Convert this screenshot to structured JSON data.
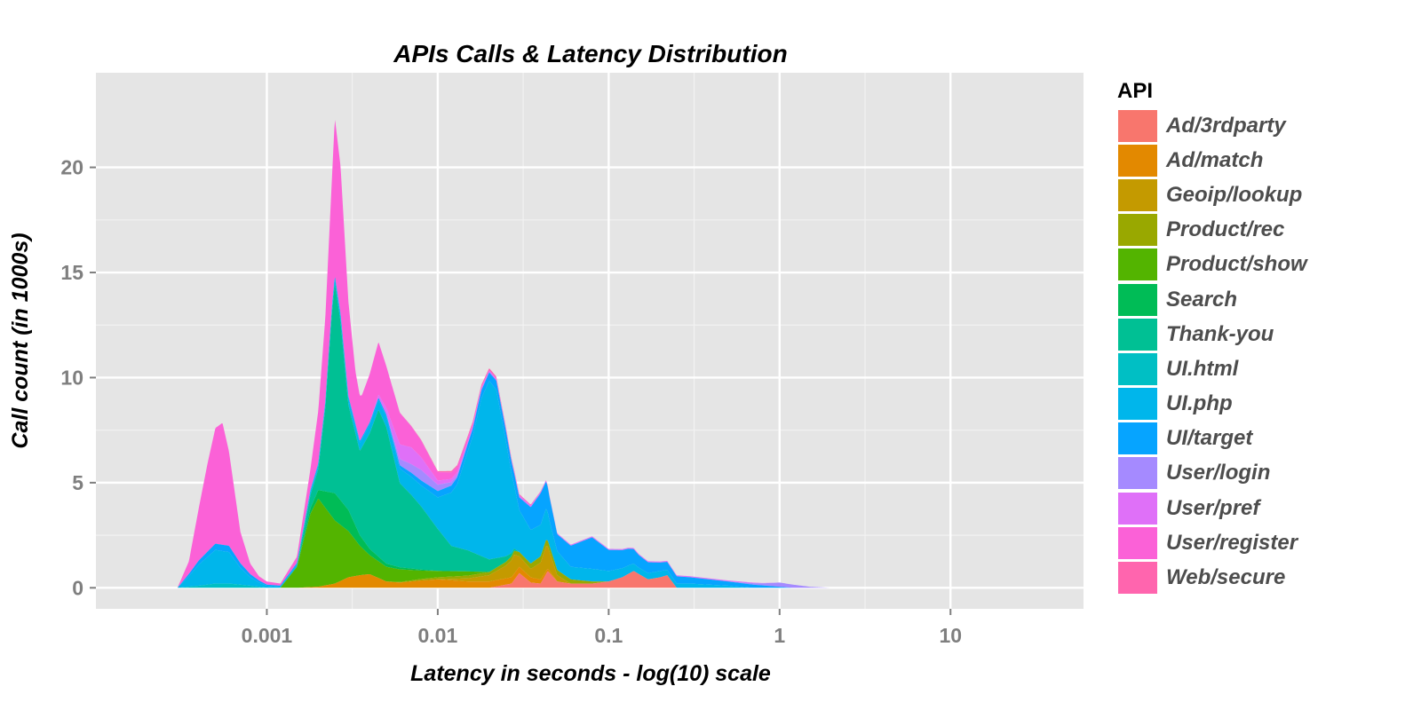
{
  "chart_data": {
    "type": "area",
    "title": "APIs Calls & Latency Distribution",
    "xlabel": "Latency in seconds - log(10) scale",
    "ylabel": "Call count (in 1000s)",
    "x_scale": "log10",
    "xlim": [
      0.0001,
      60
    ],
    "ylim": [
      -1,
      24.5
    ],
    "x_ticks": [
      0.001,
      0.01,
      0.1,
      1,
      10
    ],
    "x_tick_labels": [
      "0.001",
      "0.01",
      "0.1",
      "1",
      "10"
    ],
    "y_ticks": [
      0,
      5,
      10,
      15,
      20
    ],
    "y_tick_labels": [
      "0",
      "5",
      "10",
      "15",
      "20"
    ],
    "grid": true,
    "legend_position": "right",
    "legend_title": "API",
    "series": [
      {
        "name": "Ad/3rdparty",
        "color": "#F8766D",
        "x": [
          0.02,
          0.027,
          0.03,
          0.035,
          0.04,
          0.044,
          0.05,
          0.06,
          0.08,
          0.1,
          0.12,
          0.14,
          0.17,
          0.2,
          0.22,
          0.25
        ],
        "values": [
          0,
          0.2,
          0.7,
          0.25,
          0.2,
          0.8,
          0.3,
          0.2,
          0.2,
          0.3,
          0.5,
          0.8,
          0.4,
          0.5,
          0.6,
          0
        ]
      },
      {
        "name": "Ad/match",
        "color": "#E38900",
        "x": [
          0.0015,
          0.002,
          0.0025,
          0.003,
          0.0035,
          0.004,
          0.005,
          0.006,
          0.008,
          0.01,
          0.015,
          0.02,
          0.03,
          0.04,
          0.05
        ],
        "values": [
          0,
          0.05,
          0.2,
          0.5,
          0.6,
          0.65,
          0.3,
          0.25,
          0.35,
          0.4,
          0.3,
          0.3,
          0.3,
          0.2,
          0
        ]
      },
      {
        "name": "Geoip/lookup",
        "color": "#C49A00",
        "x": [
          0.01,
          0.015,
          0.02,
          0.025,
          0.028,
          0.03,
          0.035,
          0.04,
          0.043,
          0.05,
          0.06
        ],
        "values": [
          0,
          0.15,
          0.3,
          0.6,
          0.9,
          0.5,
          0.4,
          0.8,
          1.2,
          0.3,
          0
        ]
      },
      {
        "name": "Product/rec",
        "color": "#99A800",
        "x": [
          0.005,
          0.01,
          0.02,
          0.03,
          0.04,
          0.06,
          0.08,
          0.1
        ],
        "values": [
          0,
          0.1,
          0.15,
          0.2,
          0.3,
          0.2,
          0.1,
          0
        ]
      },
      {
        "name": "Product/show",
        "color": "#53B400",
        "x": [
          0.0012,
          0.0015,
          0.0018,
          0.002,
          0.0025,
          0.003,
          0.0035,
          0.004,
          0.005,
          0.006,
          0.008,
          0.01,
          0.015,
          0.02
        ],
        "values": [
          0,
          1.0,
          3.5,
          4.2,
          3.0,
          2.2,
          1.4,
          0.9,
          0.7,
          0.6,
          0.4,
          0.3,
          0.2,
          0
        ]
      },
      {
        "name": "Search",
        "color": "#00BC56",
        "x": [
          0.0015,
          0.002,
          0.0025,
          0.003,
          0.0035,
          0.004,
          0.005,
          0.006,
          0.008,
          0.01
        ],
        "values": [
          0,
          0.4,
          1.3,
          1.0,
          0.5,
          0.3,
          0.15,
          0.1,
          0.05,
          0
        ]
      },
      {
        "name": "Thank-you",
        "color": "#00C094",
        "x": [
          0.0015,
          0.002,
          0.0022,
          0.0024,
          0.0025,
          0.0027,
          0.003,
          0.0035,
          0.004,
          0.0045,
          0.005,
          0.006,
          0.007,
          0.008,
          0.01,
          0.012,
          0.015,
          0.02,
          0.03
        ],
        "values": [
          0,
          1.0,
          4.0,
          8.5,
          10.0,
          8.5,
          5.0,
          4.0,
          5.5,
          7.0,
          6.5,
          4.0,
          3.5,
          3.0,
          2.0,
          1.2,
          1.0,
          0.6,
          0
        ]
      },
      {
        "name": "UI.html",
        "color": "#00BFC4",
        "x": [
          0.0003,
          0.0004,
          0.0005,
          0.0006,
          0.0007,
          0.0008,
          0.0009,
          0.001
        ],
        "values": [
          0,
          0.1,
          0.2,
          0.2,
          0.15,
          0.1,
          0.05,
          0
        ]
      },
      {
        "name": "UI.php",
        "color": "#00B6EB",
        "x": [
          0.0003,
          0.00035,
          0.0004,
          0.0005,
          0.0006,
          0.0007,
          0.0008,
          0.0009,
          0.001,
          0.0012,
          0.002,
          0.005,
          0.008,
          0.01,
          0.013,
          0.016,
          0.018,
          0.02,
          0.022,
          0.025,
          0.028,
          0.03,
          0.035,
          0.04,
          0.043,
          0.045,
          0.05,
          0.06,
          0.08,
          0.1,
          0.13,
          0.15,
          0.2,
          0.25,
          0.3,
          0.5,
          0.7
        ],
        "values": [
          0,
          0.5,
          1.0,
          1.6,
          1.5,
          0.8,
          0.4,
          0.2,
          0.1,
          0.05,
          0.2,
          0.5,
          1.0,
          1.5,
          3.0,
          5.5,
          7.5,
          8.5,
          8.0,
          5.5,
          3.0,
          2.0,
          1.6,
          1.5,
          1.5,
          1.2,
          0.9,
          0.6,
          0.6,
          0.5,
          0.4,
          0.3,
          0.3,
          0.2,
          0.2,
          0.1,
          0
        ]
      },
      {
        "name": "UI/target",
        "color": "#06A4FF",
        "x": [
          0.0003,
          0.0004,
          0.0005,
          0.0006,
          0.0008,
          0.001,
          0.005,
          0.01,
          0.02,
          0.03,
          0.04,
          0.05,
          0.06,
          0.08,
          0.1,
          0.13,
          0.15,
          0.2,
          0.3,
          0.5,
          0.7,
          1.0,
          1.2
        ],
        "values": [
          0,
          0.2,
          0.3,
          0.3,
          0.15,
          0.05,
          0.1,
          0.3,
          0.4,
          0.6,
          1.5,
          0.8,
          1.0,
          1.5,
          1.0,
          0.8,
          0.6,
          0.4,
          0.3,
          0.2,
          0.15,
          0.05,
          0
        ]
      },
      {
        "name": "User/login",
        "color": "#A58AFF",
        "x": [
          0.005,
          0.006,
          0.008,
          0.01,
          0.015,
          0.5,
          0.8,
          1.0,
          1.2,
          1.5,
          2.0
        ],
        "values": [
          0,
          0.3,
          0.5,
          0.3,
          0,
          0,
          0.1,
          0.2,
          0.15,
          0.05,
          0
        ]
      },
      {
        "name": "User/pref",
        "color": "#DF70F8",
        "x": [
          0.004,
          0.005,
          0.006,
          0.007,
          0.008,
          0.01,
          0.015,
          0.02,
          0.03,
          0.05,
          0.1,
          0.3,
          0.5,
          1.0
        ],
        "values": [
          0,
          0.3,
          0.7,
          0.8,
          0.6,
          0.2,
          0.1,
          0.1,
          0.1,
          0.05,
          0.05,
          0.05,
          0.05,
          0
        ]
      },
      {
        "name": "User/register",
        "color": "#FB61D7",
        "x": [
          0.0003,
          0.00035,
          0.0004,
          0.00045,
          0.0005,
          0.00055,
          0.0006,
          0.0007,
          0.0008,
          0.0009,
          0.001,
          0.0012,
          0.0015,
          0.0018,
          0.002,
          0.0022,
          0.0024,
          0.0025,
          0.0027,
          0.003,
          0.0033,
          0.0036,
          0.004,
          0.0045,
          0.005,
          0.006,
          0.007,
          0.008,
          0.01,
          0.015,
          0.02
        ],
        "values": [
          0,
          0.6,
          2.5,
          4.2,
          5.5,
          5.8,
          4.5,
          1.5,
          0.5,
          0.2,
          0.15,
          0.1,
          0.3,
          1.0,
          2.5,
          4.0,
          6.0,
          7.5,
          7.0,
          4.5,
          2.5,
          2.0,
          2.3,
          2.5,
          2.0,
          1.5,
          1.0,
          0.8,
          0.4,
          0.2,
          0
        ]
      },
      {
        "name": "Web/secure",
        "color": "#FF65AE",
        "x": [
          0.005,
          0.01,
          0.02,
          0.05
        ],
        "values": [
          0,
          0.05,
          0.1,
          0
        ]
      }
    ]
  },
  "legend": {
    "title": "API",
    "items": [
      {
        "label": "Ad/3rdparty",
        "color": "#F8766D"
      },
      {
        "label": "Ad/match",
        "color": "#E38900"
      },
      {
        "label": "Geoip/lookup",
        "color": "#C49A00"
      },
      {
        "label": "Product/rec",
        "color": "#99A800"
      },
      {
        "label": "Product/show",
        "color": "#53B400"
      },
      {
        "label": "Search",
        "color": "#00BC56"
      },
      {
        "label": "Thank-you",
        "color": "#00C094"
      },
      {
        "label": "UI.html",
        "color": "#00BFC4"
      },
      {
        "label": "UI.php",
        "color": "#00B6EB"
      },
      {
        "label": "UI/target",
        "color": "#06A4FF"
      },
      {
        "label": "User/login",
        "color": "#A58AFF"
      },
      {
        "label": "User/pref",
        "color": "#DF70F8"
      },
      {
        "label": "User/register",
        "color": "#FB61D7"
      },
      {
        "label": "Web/secure",
        "color": "#FF65AE"
      }
    ]
  }
}
